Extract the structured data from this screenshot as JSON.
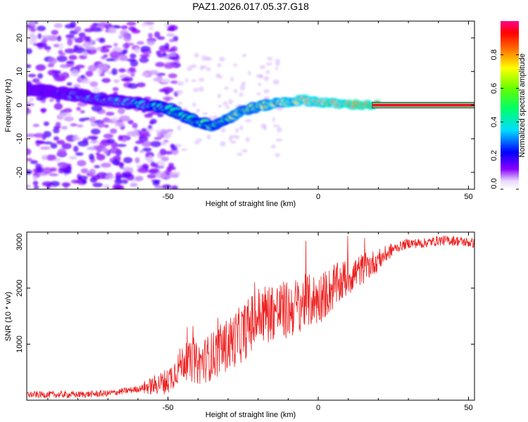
{
  "title": "PAZ1.2026.017.05.37.G18",
  "colors": {
    "snr_line": "#ee2222",
    "background": "#ffffff",
    "axis": "#000000"
  },
  "chart_data": [
    {
      "type": "heatmap",
      "name": "spectrogram",
      "xlabel": "Height of straight line (km)",
      "ylabel": "Frequency (Hz)",
      "xlim": [
        -97,
        52
      ],
      "ylim": [
        -25,
        25
      ],
      "xticks": [
        -50,
        0,
        50
      ],
      "xtick_labels": [
        "-50",
        "0",
        "50"
      ],
      "yticks": [
        -20,
        -10,
        0,
        10,
        20
      ],
      "ytick_labels": [
        "-20",
        "-10",
        "0",
        "10",
        "20"
      ],
      "ridge": {
        "x": [
          -97,
          -90,
          -80,
          -70,
          -60,
          -50,
          -45,
          -40,
          -35,
          -30,
          -25,
          -20,
          -15,
          -10,
          -5,
          0,
          5,
          10,
          20,
          30,
          52
        ],
        "frequency": [
          4.5,
          4,
          3,
          1.5,
          0.5,
          -1,
          -3,
          -5,
          -6,
          -4,
          -1.5,
          -0.5,
          0.5,
          1,
          1.5,
          1,
          0.5,
          0.2,
          0,
          0,
          0
        ]
      },
      "colorbar": {
        "label": "Normalized spectral amplitude",
        "range": [
          0,
          1
        ],
        "ticks": [
          0,
          0.2,
          0.4,
          0.6,
          0.8
        ],
        "tick_labels": [
          "0.0",
          "0.2",
          "0.4",
          "0.6",
          "0.8"
        ],
        "colormap": "hsv-rainbow-white-to-red"
      }
    },
    {
      "type": "line",
      "name": "snr",
      "xlabel": "Height of straight line (km)",
      "ylabel": "SNR (10 * v/v)",
      "xlim": [
        -97,
        52
      ],
      "ylim": [
        0,
        3000
      ],
      "xticks": [
        -50,
        0,
        50
      ],
      "xtick_labels": [
        "-50",
        "0",
        "50"
      ],
      "yticks": [
        1000,
        2000,
        3000
      ],
      "ytick_labels": [
        "1000",
        "2000",
        "3000"
      ],
      "series": [
        {
          "name": "SNR",
          "x": [
            -97,
            -90,
            -80,
            -70,
            -60,
            -55,
            -50,
            -45,
            -40,
            -35,
            -30,
            -25,
            -20,
            -15,
            -10,
            -5,
            0,
            5,
            10,
            15,
            20,
            25,
            30,
            35,
            40,
            45,
            52
          ],
          "y": [
            100,
            100,
            100,
            120,
            200,
            260,
            350,
            700,
            650,
            800,
            1000,
            1200,
            1500,
            1600,
            1600,
            1750,
            1800,
            2000,
            2200,
            2350,
            2500,
            2700,
            2800,
            2800,
            2850,
            2850,
            2800
          ]
        }
      ]
    }
  ]
}
